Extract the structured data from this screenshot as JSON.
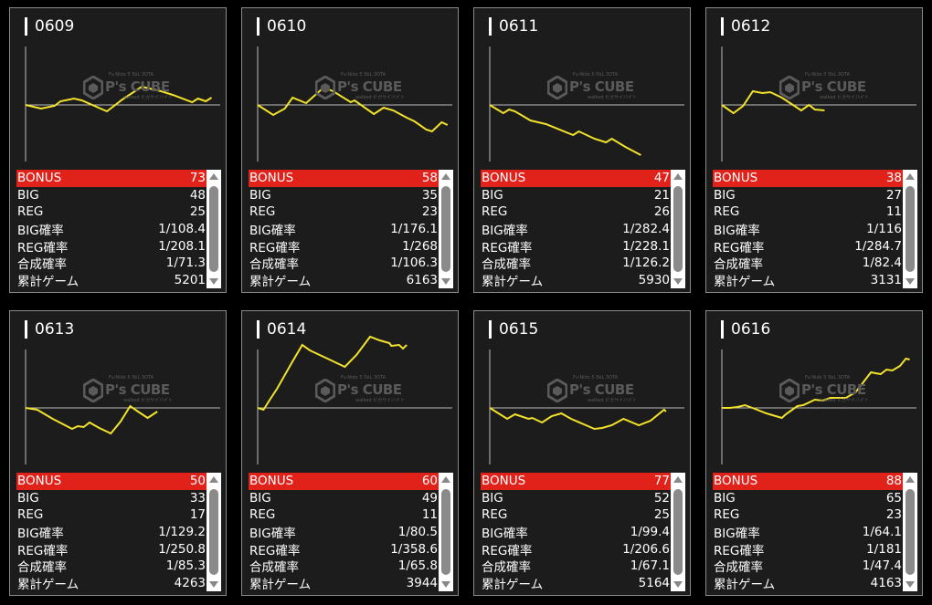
{
  "colors": {
    "accent": "#e0221b",
    "line": "#f2e22c",
    "axis": "#bbbbbb",
    "background": "#1c1c1c"
  },
  "watermark": {
    "brand": "P's CUBE",
    "top_text": "Fu·Nido 5 5bL 3OTA",
    "bottom_text": "walked ビガサイバイト"
  },
  "labels": {
    "bonus": "BONUS",
    "big": "BIG",
    "reg": "REG",
    "big_rate": "BIG確率",
    "reg_rate": "REG確率",
    "total_rate": "合成確率",
    "games": "累計ゲーム"
  },
  "chart_data": {
    "type": "line",
    "x_range": [
      0,
      100
    ],
    "y_range": [
      -62,
      64
    ],
    "grid": false
  },
  "machines": [
    {
      "id": "0609",
      "bonus": "73",
      "big": "48",
      "reg": "25",
      "big_rate": "1/108.4",
      "reg_rate": "1/208.1",
      "total_rate": "1/71.3",
      "games": "5201",
      "graph": [
        [
          0,
          0
        ],
        [
          4,
          -2
        ],
        [
          8,
          -4
        ],
        [
          15,
          -1
        ],
        [
          18,
          4
        ],
        [
          25,
          7
        ],
        [
          29,
          5
        ],
        [
          42,
          -7
        ],
        [
          50,
          6
        ],
        [
          60,
          20
        ],
        [
          70,
          15
        ],
        [
          76,
          11
        ],
        [
          86,
          3
        ],
        [
          89,
          7
        ],
        [
          93,
          4
        ],
        [
          96,
          8
        ]
      ]
    },
    {
      "id": "0610",
      "bonus": "58",
      "big": "35",
      "reg": "23",
      "big_rate": "1/176.1",
      "reg_rate": "1/268",
      "total_rate": "1/106.3",
      "games": "6163",
      "graph": [
        [
          0,
          0
        ],
        [
          8,
          -11
        ],
        [
          14,
          -4
        ],
        [
          18,
          8
        ],
        [
          25,
          2
        ],
        [
          34,
          19
        ],
        [
          39,
          15
        ],
        [
          48,
          3
        ],
        [
          50,
          5
        ],
        [
          60,
          -10
        ],
        [
          65,
          -3
        ],
        [
          70,
          -6
        ],
        [
          77,
          -14
        ],
        [
          81,
          -18
        ],
        [
          87,
          -27
        ],
        [
          90,
          -29
        ],
        [
          95,
          -19
        ],
        [
          98,
          -22
        ]
      ]
    },
    {
      "id": "0611",
      "bonus": "47",
      "big": "21",
      "reg": "26",
      "big_rate": "1/282.4",
      "reg_rate": "1/228.1",
      "total_rate": "1/126.2",
      "games": "5930",
      "graph": [
        [
          0,
          0
        ],
        [
          7,
          -9
        ],
        [
          10,
          -5
        ],
        [
          13,
          -7
        ],
        [
          21,
          -17
        ],
        [
          29,
          -21
        ],
        [
          43,
          -33
        ],
        [
          46,
          -29
        ],
        [
          54,
          -37
        ],
        [
          60,
          -41
        ],
        [
          63,
          -37
        ],
        [
          70,
          -46
        ],
        [
          78,
          -55
        ]
      ]
    },
    {
      "id": "0612",
      "bonus": "38",
      "big": "27",
      "reg": "11",
      "big_rate": "1/116",
      "reg_rate": "1/284.7",
      "total_rate": "1/82.4",
      "games": "3131",
      "graph": [
        [
          0,
          0
        ],
        [
          6,
          -9
        ],
        [
          11,
          -1
        ],
        [
          16,
          15
        ],
        [
          21,
          13
        ],
        [
          25,
          14
        ],
        [
          31,
          8
        ],
        [
          36,
          1
        ],
        [
          41,
          -6
        ],
        [
          45,
          0
        ],
        [
          48,
          -5
        ],
        [
          53,
          -6
        ]
      ]
    },
    {
      "id": "0613",
      "bonus": "50",
      "big": "33",
      "reg": "17",
      "big_rate": "1/129.2",
      "reg_rate": "1/250.8",
      "total_rate": "1/85.3",
      "games": "4263",
      "graph": [
        [
          0,
          0
        ],
        [
          6,
          -2
        ],
        [
          14,
          -12
        ],
        [
          24,
          -23
        ],
        [
          27,
          -20
        ],
        [
          30,
          -21
        ],
        [
          33,
          -16
        ],
        [
          38,
          -22
        ],
        [
          44,
          -28
        ],
        [
          49,
          -15
        ],
        [
          54,
          2
        ],
        [
          58,
          -4
        ],
        [
          63,
          -11
        ],
        [
          68,
          -4
        ]
      ]
    },
    {
      "id": "0614",
      "bonus": "60",
      "big": "49",
      "reg": "11",
      "big_rate": "1/80.5",
      "reg_rate": "1/358.6",
      "total_rate": "1/65.8",
      "games": "3944",
      "graph": [
        [
          0,
          0
        ],
        [
          3,
          -2
        ],
        [
          6,
          8
        ],
        [
          10,
          21
        ],
        [
          18,
          51
        ],
        [
          23,
          69
        ],
        [
          27,
          63
        ],
        [
          33,
          57
        ],
        [
          38,
          52
        ],
        [
          45,
          45
        ],
        [
          51,
          58
        ],
        [
          58,
          78
        ],
        [
          63,
          74
        ],
        [
          68,
          71
        ],
        [
          69,
          68
        ],
        [
          73,
          69
        ],
        [
          75,
          65
        ],
        [
          77,
          69
        ]
      ]
    },
    {
      "id": "0615",
      "bonus": "77",
      "big": "52",
      "reg": "25",
      "big_rate": "1/99.4",
      "reg_rate": "1/206.6",
      "total_rate": "1/67.1",
      "games": "5164",
      "graph": [
        [
          0,
          0
        ],
        [
          9,
          -12
        ],
        [
          13,
          -7
        ],
        [
          20,
          -12
        ],
        [
          22,
          -11
        ],
        [
          27,
          -16
        ],
        [
          32,
          -9
        ],
        [
          37,
          -6
        ],
        [
          42,
          -12
        ],
        [
          54,
          -23
        ],
        [
          58,
          -22
        ],
        [
          63,
          -19
        ],
        [
          69,
          -12
        ],
        [
          77,
          -19
        ],
        [
          83,
          -14
        ],
        [
          90,
          -2
        ],
        [
          91,
          -4
        ]
      ]
    },
    {
      "id": "0616",
      "bonus": "88",
      "big": "65",
      "reg": "23",
      "big_rate": "1/64.1",
      "reg_rate": "1/181",
      "total_rate": "1/47.4",
      "games": "4163",
      "graph": [
        [
          0,
          0
        ],
        [
          4,
          0
        ],
        [
          8,
          1
        ],
        [
          12,
          3
        ],
        [
          17,
          -1
        ],
        [
          23,
          -6
        ],
        [
          31,
          -11
        ],
        [
          33,
          -7
        ],
        [
          39,
          2
        ],
        [
          42,
          3
        ],
        [
          48,
          9
        ],
        [
          52,
          8
        ],
        [
          56,
          11
        ],
        [
          64,
          11
        ],
        [
          69,
          17
        ],
        [
          77,
          39
        ],
        [
          82,
          37
        ],
        [
          85,
          42
        ],
        [
          88,
          41
        ],
        [
          92,
          46
        ],
        [
          95,
          54
        ],
        [
          97,
          53
        ]
      ]
    }
  ]
}
